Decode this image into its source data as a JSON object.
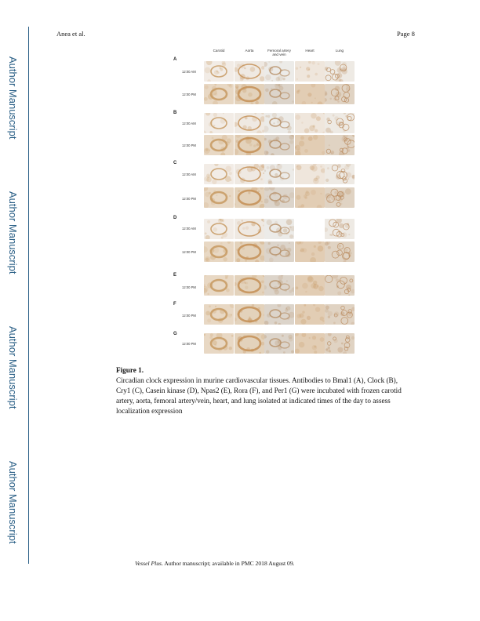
{
  "sidebar": {
    "label": "Author Manuscript"
  },
  "header": {
    "author": "Anea et al.",
    "page": "Page 8"
  },
  "figure": {
    "columns": [
      "Carotid",
      "Aorta",
      "Femoral artery and vein",
      "Heart",
      "Lung"
    ],
    "panels": [
      {
        "letter": "A",
        "rows": [
          "12:00 AM",
          "12:00 PM"
        ]
      },
      {
        "letter": "B",
        "rows": [
          "12:00 AM",
          "12:00 PM"
        ]
      },
      {
        "letter": "C",
        "rows": [
          "12:00 AM",
          "12:00 PM"
        ]
      },
      {
        "letter": "D",
        "rows": [
          "12:00 AM",
          "12:00 PM"
        ]
      },
      {
        "letter": "E",
        "rows": [
          "12:00 PM"
        ]
      },
      {
        "letter": "F",
        "rows": [
          "12:00 PM"
        ]
      },
      {
        "letter": "G",
        "rows": [
          "12:00 PM"
        ]
      }
    ],
    "caption_label": "Figure 1.",
    "caption_text": "Circadian clock expression in murine cardiovascular tissues. Antibodies to Bmal1 (A), Clock (B), Cry1 (C), Casein kinase (D), Npas2 (E), Rora (F), and Per1 (G) were incubated with frozen carotid artery, aorta, femoral artery/vein, heart, and lung isolated at indicated times of the day to assess localization expression"
  },
  "footer": {
    "journal": "Vessel Plus",
    "text": ". Author manuscript; available in PMC 2018 August 09."
  }
}
